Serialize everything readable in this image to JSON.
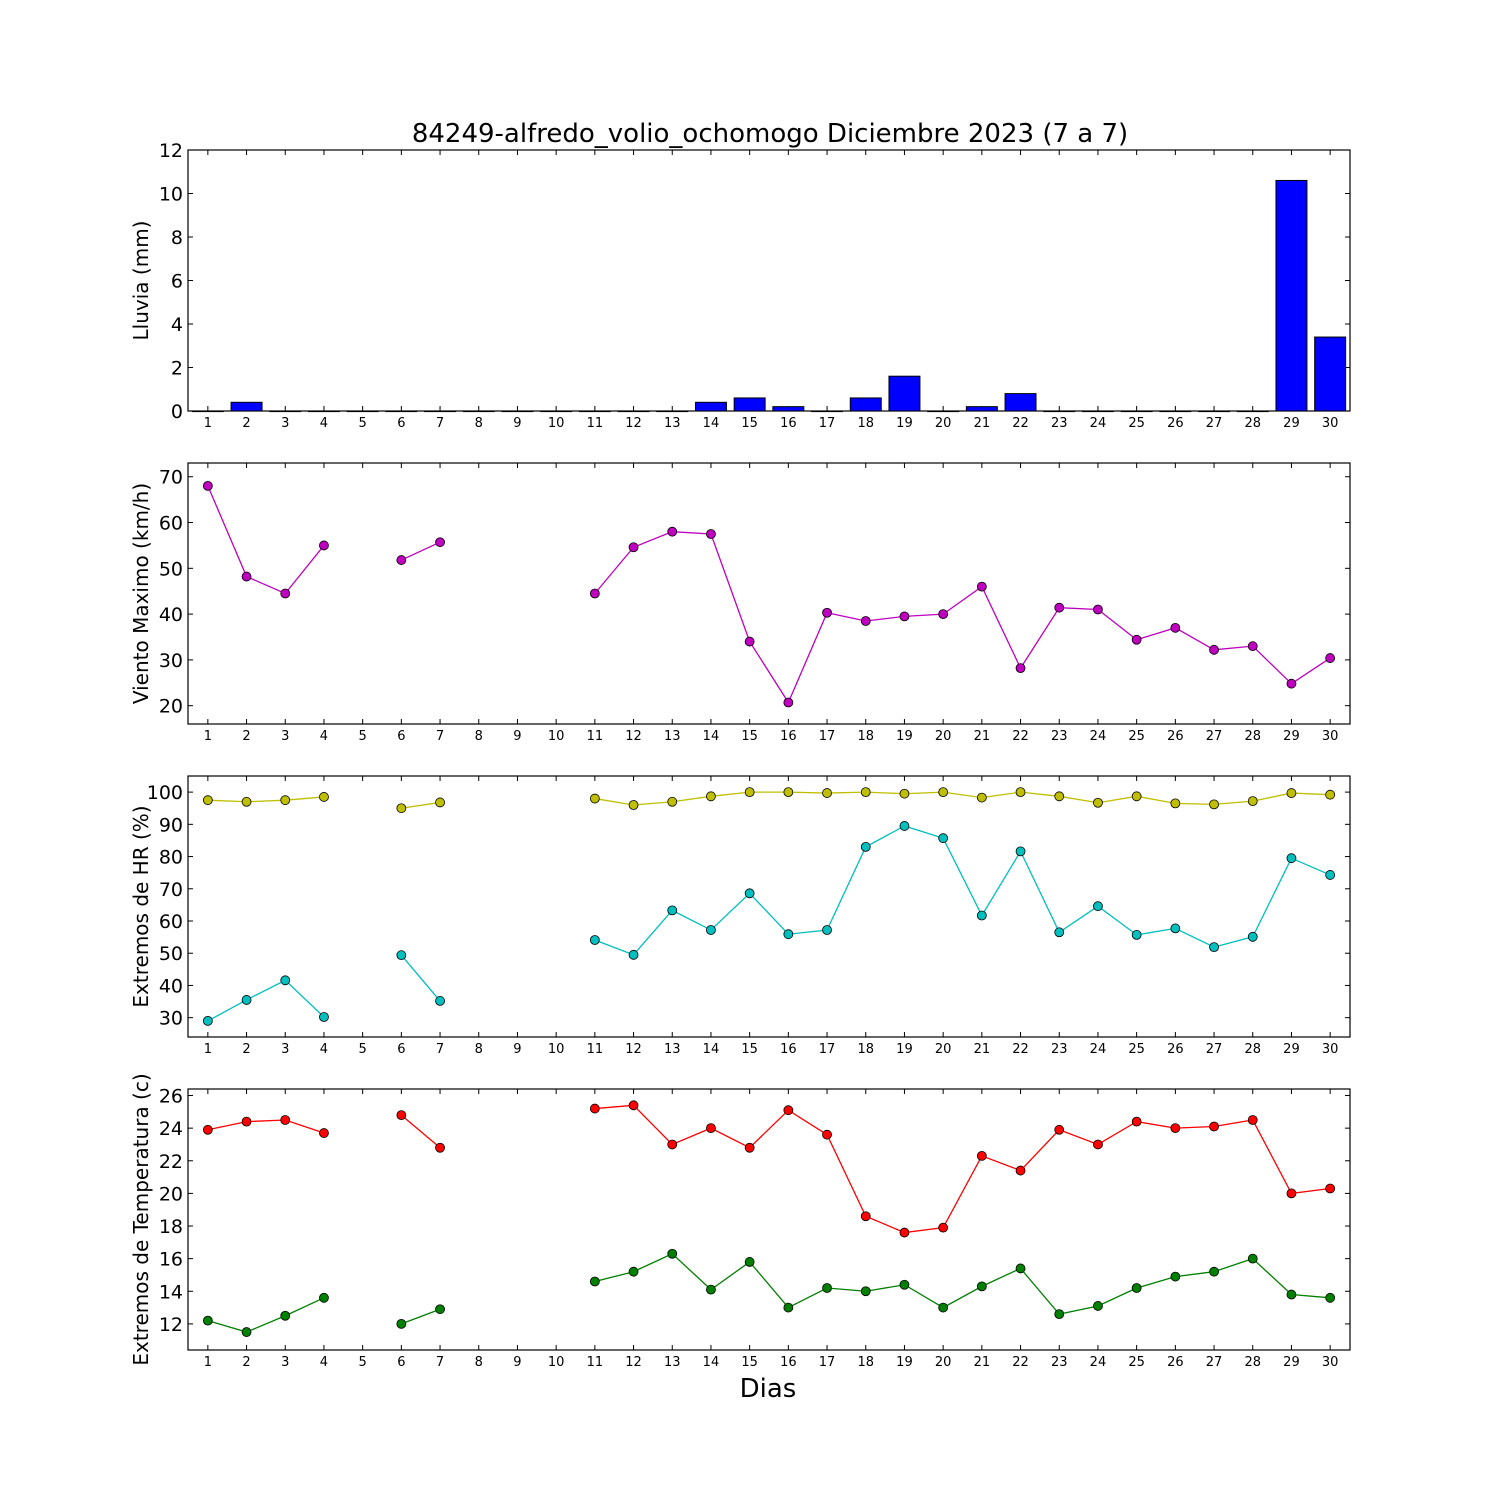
{
  "title": "84249-alfredo_volio_ochomogo Diciembre 2023  (7 a 7)",
  "xlabel": "Dias",
  "days": [
    1,
    2,
    3,
    4,
    5,
    6,
    7,
    8,
    9,
    10,
    11,
    12,
    13,
    14,
    15,
    16,
    17,
    18,
    19,
    20,
    21,
    22,
    23,
    24,
    25,
    26,
    27,
    28,
    29,
    30
  ],
  "chart_data": [
    {
      "type": "bar",
      "ylabel": "Lluvia (mm)",
      "ylim": [
        0,
        12
      ],
      "yticks": [
        0,
        2,
        4,
        6,
        8,
        10,
        12
      ],
      "color": "#0000ff",
      "series": [
        {
          "values": [
            0,
            0.4,
            0,
            0,
            0,
            0,
            0,
            0,
            0,
            0,
            0,
            0,
            0,
            0.4,
            0.6,
            0.2,
            0,
            0.6,
            1.6,
            0,
            0.2,
            0.8,
            0,
            0,
            0,
            0,
            0,
            0,
            10.6,
            3.4
          ]
        }
      ]
    },
    {
      "type": "line",
      "ylabel": "Viento Maximo (km/h)",
      "ylim": [
        16,
        73
      ],
      "yticks": [
        20,
        30,
        40,
        50,
        60,
        70
      ],
      "series": [
        {
          "color": "#bf00bf",
          "values": [
            68,
            48.2,
            44.5,
            55,
            null,
            51.8,
            55.7,
            null,
            null,
            null,
            44.5,
            54.6,
            58,
            57.5,
            34,
            20.7,
            40.3,
            38.5,
            39.5,
            40,
            46,
            28.2,
            41.4,
            41,
            34.4,
            37,
            32.2,
            33,
            24.8,
            30.4
          ]
        }
      ]
    },
    {
      "type": "line",
      "ylabel": "Extremos de HR (%)",
      "ylim": [
        24,
        105
      ],
      "yticks": [
        30,
        40,
        50,
        60,
        70,
        80,
        90,
        100
      ],
      "series": [
        {
          "color": "#bfbf00",
          "values": [
            97.5,
            97,
            97.5,
            98.5,
            null,
            95,
            96.8,
            null,
            null,
            null,
            98,
            96,
            97,
            98.7,
            100,
            100,
            99.7,
            100,
            99.5,
            100,
            98.3,
            100,
            98.7,
            96.7,
            98.7,
            96.5,
            96.2,
            97.2,
            99.7,
            99.2
          ]
        },
        {
          "color": "#00bfbf",
          "values": [
            29,
            35.5,
            41.6,
            30.2,
            null,
            49.4,
            35.2,
            null,
            null,
            null,
            54.1,
            49.5,
            63.3,
            57.2,
            68.6,
            55.9,
            57.2,
            83,
            89.5,
            85.7,
            61.7,
            81.6,
            56.5,
            64.6,
            55.7,
            57.7,
            51.9,
            55.1,
            79.5,
            74.3
          ]
        }
      ]
    },
    {
      "type": "line",
      "ylabel": "Extremos de Temperatura (c)",
      "ylim": [
        10.4,
        26.4
      ],
      "yticks": [
        12,
        14,
        16,
        18,
        20,
        22,
        24,
        26
      ],
      "series": [
        {
          "color": "#ff0000",
          "values": [
            23.9,
            24.4,
            24.5,
            23.7,
            null,
            24.8,
            22.8,
            null,
            null,
            null,
            25.2,
            25.4,
            23,
            24,
            22.8,
            25.1,
            23.6,
            18.6,
            17.6,
            17.9,
            22.3,
            21.4,
            23.9,
            23,
            24.4,
            24,
            24.1,
            24.5,
            20,
            20.3
          ]
        },
        {
          "color": "#008000",
          "values": [
            12.2,
            11.5,
            12.5,
            13.6,
            null,
            12,
            12.9,
            null,
            null,
            null,
            14.6,
            15.2,
            16.3,
            14.1,
            15.8,
            13,
            14.2,
            14,
            14.4,
            13,
            14.3,
            15.4,
            12.6,
            13.1,
            14.2,
            14.9,
            15.2,
            16,
            13.8,
            13.6
          ]
        }
      ]
    }
  ]
}
